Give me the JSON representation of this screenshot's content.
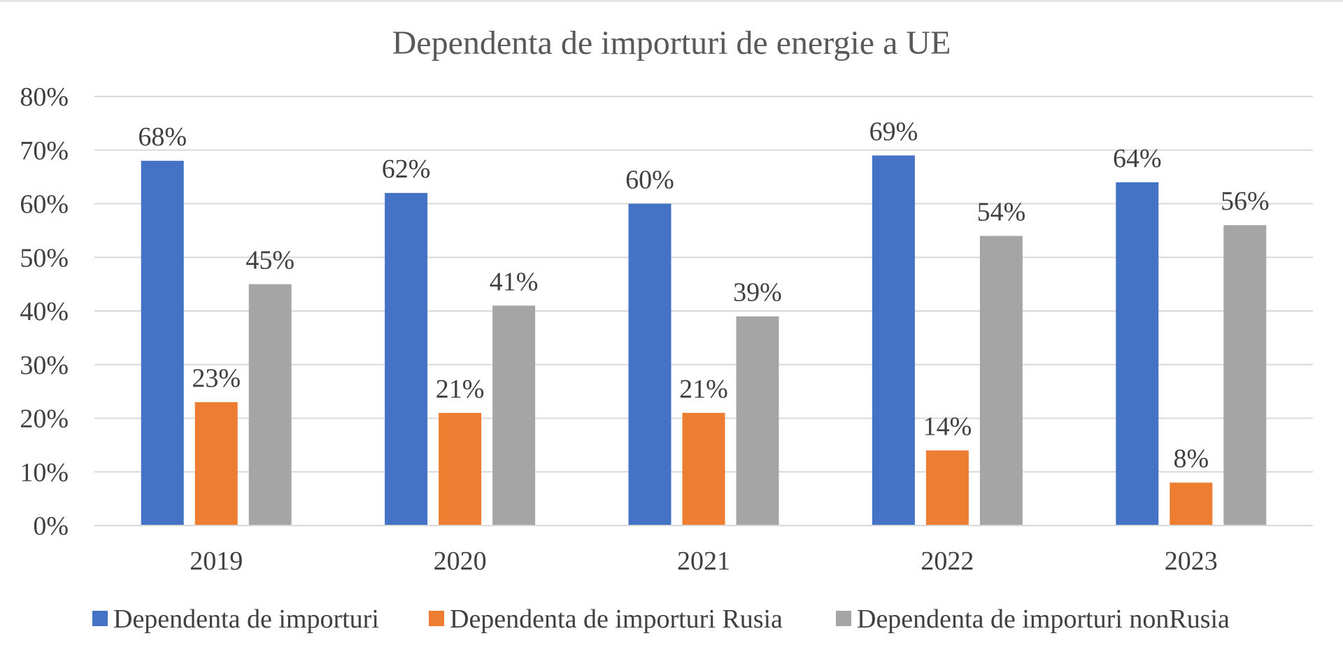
{
  "chart_data": {
    "type": "bar",
    "title": "Dependenta de importuri de energie a UE",
    "categories": [
      "2019",
      "2020",
      "2021",
      "2022",
      "2023"
    ],
    "series": [
      {
        "name": "Dependenta de importuri",
        "color": "#4472C4",
        "values": [
          68,
          62,
          60,
          69,
          64
        ],
        "labels": [
          "68%",
          "62%",
          "60%",
          "69%",
          "64%"
        ]
      },
      {
        "name": "Dependenta de importuri Rusia",
        "color": "#ED7D31",
        "values": [
          23,
          21,
          21,
          14,
          8
        ],
        "labels": [
          "23%",
          "21%",
          "21%",
          "14%",
          "8%"
        ]
      },
      {
        "name": "Dependenta de importuri nonRusia",
        "color": "#A5A5A5",
        "values": [
          45,
          41,
          39,
          54,
          56
        ],
        "labels": [
          "45%",
          "41%",
          "39%",
          "54%",
          "56%"
        ]
      }
    ],
    "yticks": [
      0,
      10,
      20,
      30,
      40,
      50,
      60,
      70,
      80
    ],
    "ytick_labels": [
      "0%",
      "10%",
      "20%",
      "30%",
      "40%",
      "50%",
      "60%",
      "70%",
      "80%"
    ],
    "ylim": [
      0,
      80
    ],
    "xlabel": "",
    "ylabel": "",
    "grid": true,
    "legend_position": "bottom",
    "gridline_color": "#D9D9D9"
  }
}
